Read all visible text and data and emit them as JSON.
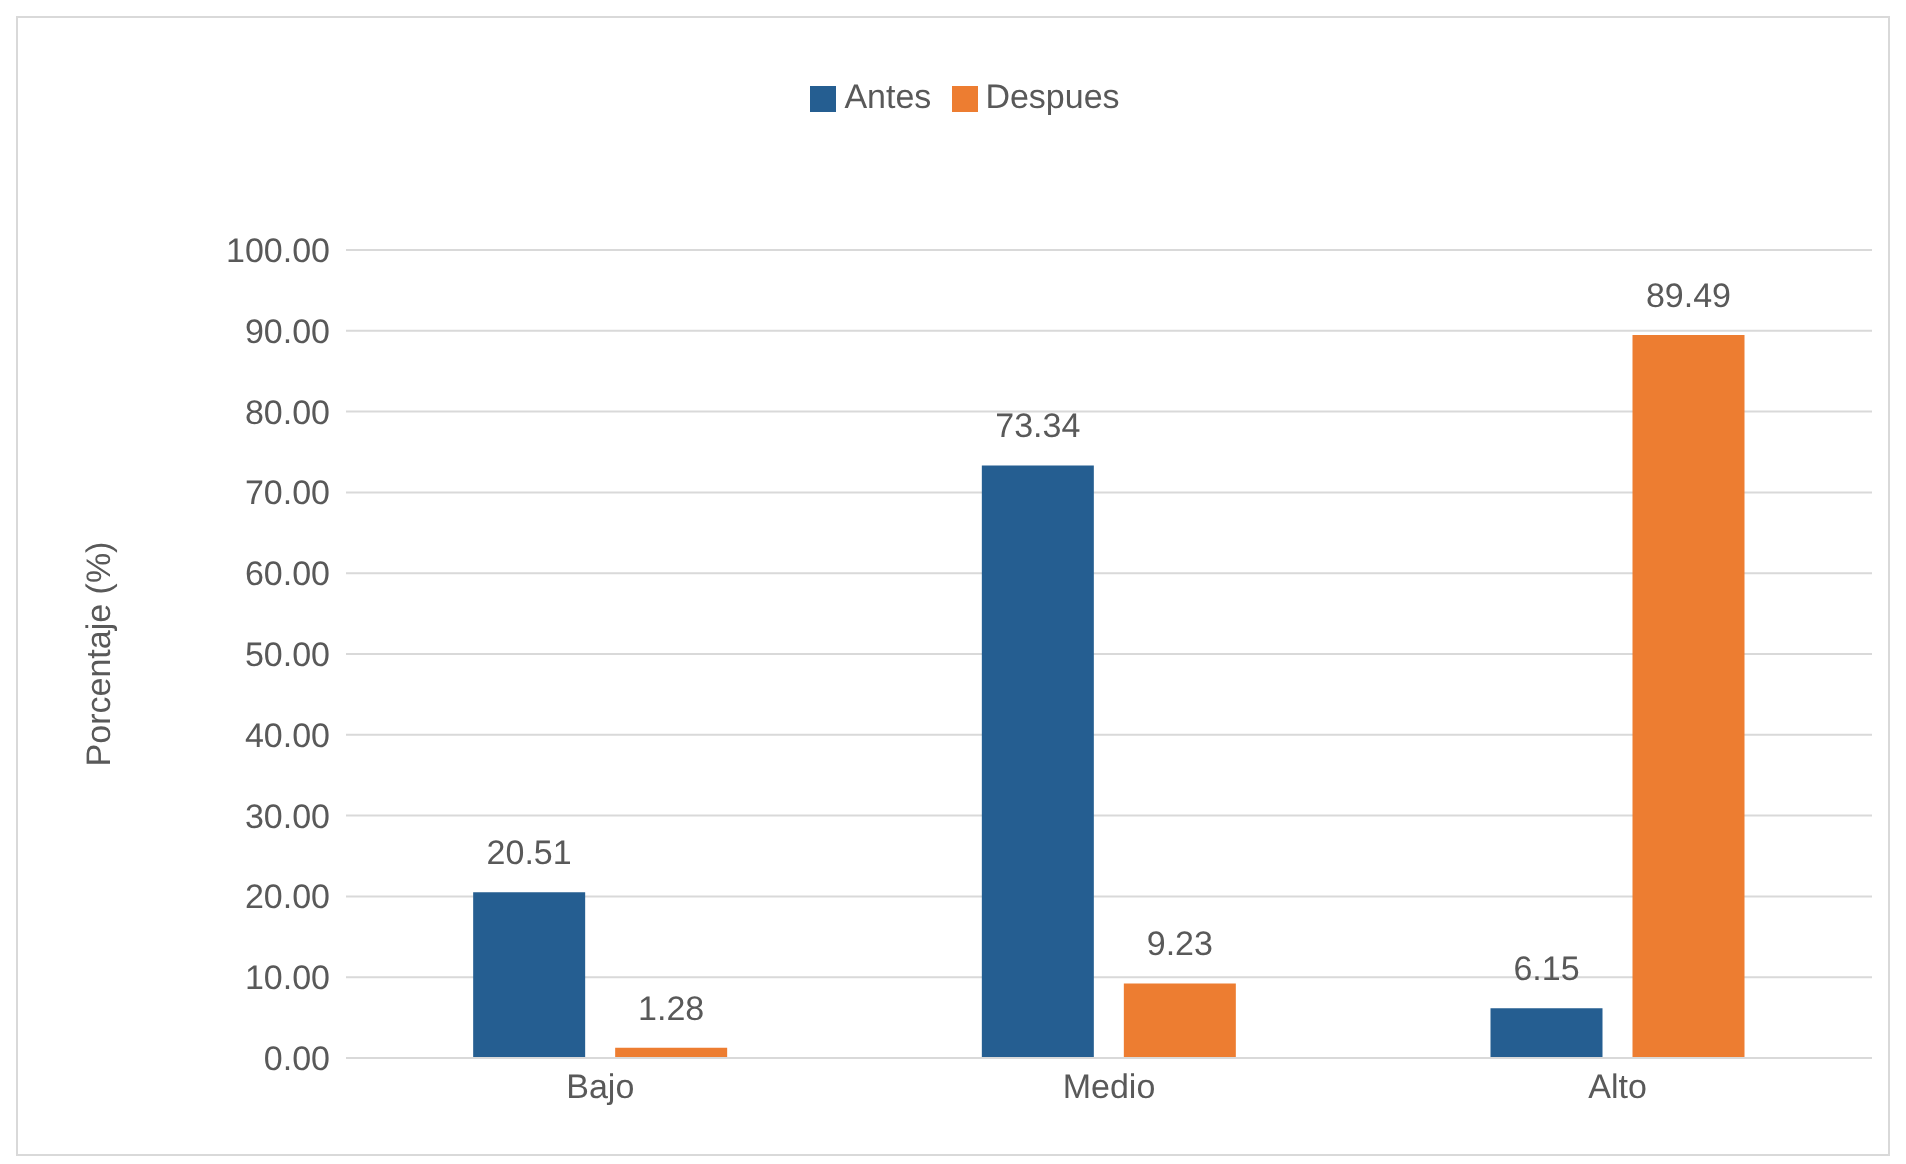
{
  "chart_data": {
    "type": "bar",
    "ylabel": "Porcentaje (%)",
    "categories": [
      "Bajo",
      "Medio",
      "Alto"
    ],
    "series": [
      {
        "name": "Antes",
        "color": "#255e91",
        "values": [
          20.51,
          73.34,
          6.15
        ]
      },
      {
        "name": "Despues",
        "color": "#ed7d31",
        "values": [
          1.28,
          9.23,
          89.49
        ]
      }
    ],
    "ylim": [
      0,
      100
    ],
    "yticks": [
      {
        "value": 0,
        "label": "0.00"
      },
      {
        "value": 10,
        "label": "10.00"
      },
      {
        "value": 20,
        "label": "20.00"
      },
      {
        "value": 30,
        "label": "30.00"
      },
      {
        "value": 40,
        "label": "40.00"
      },
      {
        "value": 50,
        "label": "50.00"
      },
      {
        "value": 60,
        "label": "60.00"
      },
      {
        "value": 70,
        "label": "70.00"
      },
      {
        "value": 80,
        "label": "80.00"
      },
      {
        "value": 90,
        "label": "90.00"
      },
      {
        "value": 100,
        "label": "100.00"
      }
    ],
    "grid": "y",
    "legend": "top",
    "data_labels": true
  }
}
